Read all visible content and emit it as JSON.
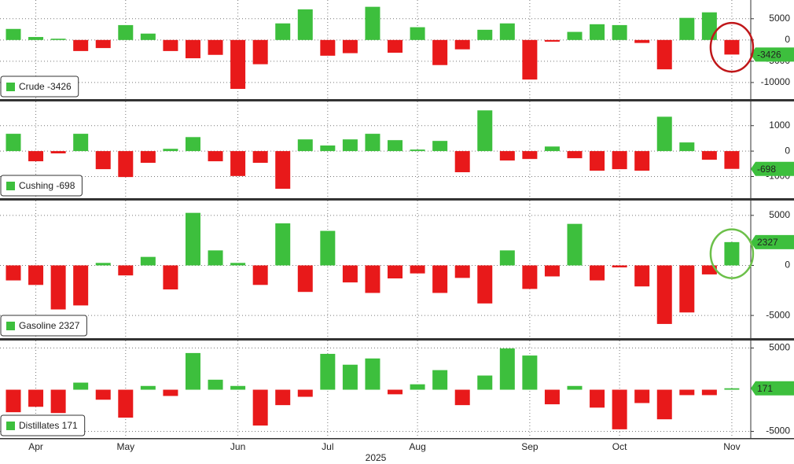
{
  "chart_data": [
    {
      "type": "bar",
      "label": "Crude -3426",
      "positive_color": "#3dbf3d",
      "negative_color": "#e8191a",
      "highlight_color": "#c0171a",
      "values": [
        2600,
        700,
        300,
        -2600,
        -1900,
        3500,
        1500,
        -2600,
        -4300,
        -3500,
        -11500,
        -5700,
        3900,
        7200,
        -3700,
        -3100,
        7800,
        -3000,
        3000,
        -5900,
        -2200,
        2400,
        3900,
        -9300,
        -400,
        1900,
        3700,
        3500,
        -700,
        -6900,
        5200,
        6500,
        -3426
      ],
      "ylim": [
        -13900,
        9400
      ],
      "yticks": [
        5000,
        0,
        -5000,
        -10000
      ],
      "grid": true
    },
    {
      "type": "bar",
      "label": "Cushing -698",
      "positive_color": "#3dbf3d",
      "negative_color": "#e8191a",
      "values": [
        680,
        -400,
        -90,
        680,
        -710,
        -1020,
        -460,
        90,
        550,
        -400,
        -980,
        -460,
        -1480,
        460,
        220,
        460,
        680,
        430,
        60,
        400,
        -830,
        1600,
        -370,
        -310,
        180,
        -280,
        -770,
        -710,
        -770,
        1350,
        340,
        -340,
        -698
      ],
      "ylim": [
        -1850,
        1950
      ],
      "yticks": [
        1000,
        0,
        -1000
      ],
      "grid": true
    },
    {
      "type": "bar",
      "label": "Gasoline 2327",
      "positive_color": "#3dbf3d",
      "negative_color": "#e8191a",
      "highlight_color": "#6cc04a",
      "values": [
        -1500,
        -1950,
        -4400,
        -4000,
        250,
        -1000,
        850,
        -2400,
        5250,
        1500,
        250,
        -1950,
        4200,
        -2650,
        3450,
        -1700,
        -2750,
        -1300,
        -800,
        -2750,
        -1250,
        -3800,
        1500,
        -2350,
        -1100,
        4150,
        -1500,
        -200,
        -2100,
        -5850,
        -4700,
        -900,
        2327
      ],
      "ylim": [
        -7270,
        6480
      ],
      "yticks": [
        5000,
        0,
        -5000
      ],
      "grid": true
    },
    {
      "type": "bar",
      "label": "Distillates 171",
      "positive_color": "#3dbf3d",
      "negative_color": "#e8191a",
      "values": [
        -2700,
        -2050,
        -2800,
        850,
        -1200,
        -3350,
        450,
        -750,
        4400,
        1200,
        450,
        -4300,
        -1850,
        -850,
        4300,
        3000,
        3750,
        -550,
        650,
        2350,
        -1850,
        1700,
        4950,
        4100,
        -1750,
        450,
        -2150,
        -4750,
        -1600,
        -3550,
        -650,
        -650,
        171
      ],
      "ylim": [
        -5800,
        5900
      ],
      "yticks": [
        5000,
        -5000
      ],
      "grid": true,
      "categories": [
        null,
        "Apr",
        null,
        null,
        null,
        "May",
        null,
        null,
        null,
        null,
        "Jun",
        null,
        null,
        null,
        "Jul",
        null,
        null,
        null,
        "Aug",
        null,
        null,
        null,
        null,
        "Sep",
        null,
        null,
        null,
        "Oct",
        null,
        null,
        null,
        null,
        "Nov"
      ],
      "xlabel": "2025"
    }
  ]
}
